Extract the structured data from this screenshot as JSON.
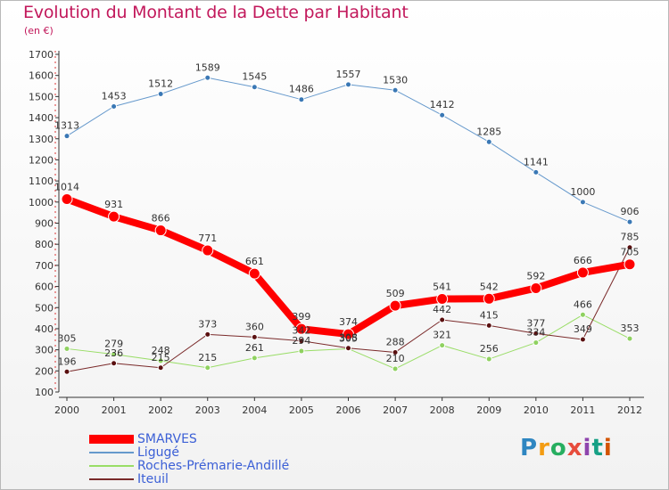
{
  "title": "Evolution du Montant de la Dette par Habitant",
  "subtitle": "(en €)",
  "logo": {
    "text": "Proxiti",
    "colors": [
      "#2e86c1",
      "#f39c12",
      "#27ae60",
      "#e74c3c",
      "#8e44ad",
      "#16a085",
      "#d35400"
    ]
  },
  "chart_data": {
    "type": "line",
    "title": "Evolution du Montant de la Dette par Habitant",
    "subtitle": "(en €)",
    "xlabel": "",
    "ylabel": "",
    "ylim": [
      100,
      1700
    ],
    "yticks": [
      100,
      200,
      300,
      400,
      500,
      600,
      700,
      800,
      900,
      1000,
      1100,
      1200,
      1300,
      1400,
      1500,
      1600,
      1700
    ],
    "x": [
      "2000",
      "2001",
      "2002",
      "2003",
      "2004",
      "2005",
      "2006",
      "2007",
      "2008",
      "2009",
      "2010",
      "2011",
      "2012"
    ],
    "legend_position": "bottom-left",
    "grid": false,
    "series": [
      {
        "name": "SMARVES",
        "color": "#ff0000",
        "values": [
          1014,
          931,
          866,
          771,
          661,
          399,
          374,
          509,
          541,
          542,
          592,
          666,
          705
        ]
      },
      {
        "name": "Ligugé",
        "color": "#6699cc",
        "values": [
          1313,
          1453,
          1512,
          1589,
          1545,
          1486,
          1557,
          1530,
          1412,
          1285,
          1141,
          1000,
          906
        ]
      },
      {
        "name": "Roches-Prémarie-Andillé",
        "color": "#99dd66",
        "values": [
          305,
          279,
          248,
          215,
          261,
          294,
          305,
          210,
          321,
          256,
          334,
          466,
          353
        ]
      },
      {
        "name": "Iteuil",
        "color": "#7a2a2a",
        "values": [
          196,
          236,
          215,
          373,
          360,
          342,
          308,
          288,
          442,
          415,
          377,
          349,
          785
        ]
      }
    ]
  }
}
